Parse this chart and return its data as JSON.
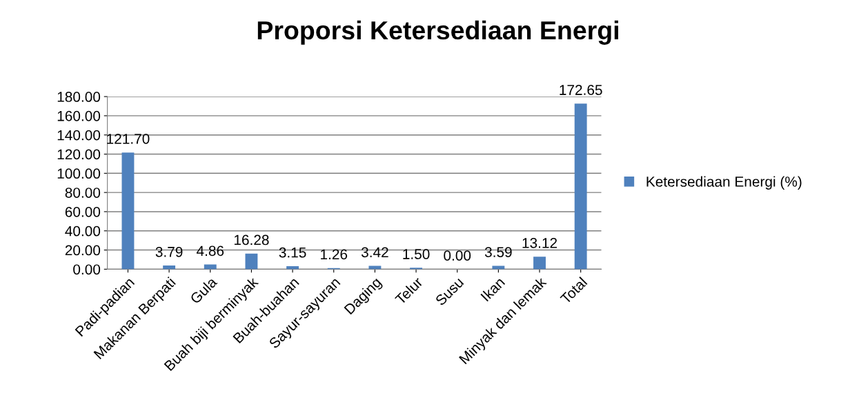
{
  "chart_data": {
    "type": "bar",
    "title": "Proporsi Ketersediaan Energi",
    "categories": [
      "Padi-padian",
      "Makanan Berpati",
      "Gula",
      "Buah biji berminyak",
      "Buah-buahan",
      "Sayur-sayuran",
      "Daging",
      "Telur",
      "Susu",
      "Ikan",
      "Minyak dan lemak",
      "Total"
    ],
    "series": [
      {
        "name": "Ketersediaan Energi (%)",
        "color": "#4f81bd",
        "values": [
          121.7,
          3.79,
          4.86,
          16.28,
          3.15,
          1.26,
          3.42,
          1.5,
          0.0,
          3.59,
          13.12,
          172.65
        ],
        "value_labels": [
          "121.70",
          "3.79",
          "4.86",
          "16.28",
          "3.15",
          "1.26",
          "3.42",
          "1.50",
          "0.00",
          "3.59",
          "13.12",
          "172.65"
        ]
      }
    ],
    "ylim": [
      0,
      180
    ],
    "yticks": [
      {
        "value": 0,
        "label": "0.00"
      },
      {
        "value": 20,
        "label": "20.00"
      },
      {
        "value": 40,
        "label": "40.00"
      },
      {
        "value": 60,
        "label": "60.00"
      },
      {
        "value": 80,
        "label": "80.00"
      },
      {
        "value": 100,
        "label": "100.00"
      },
      {
        "value": 120,
        "label": "120.00"
      },
      {
        "value": 140,
        "label": "140.00"
      },
      {
        "value": 160,
        "label": "160.00"
      },
      {
        "value": 180,
        "label": "180.00"
      }
    ],
    "grid": "y",
    "legend": "right"
  }
}
